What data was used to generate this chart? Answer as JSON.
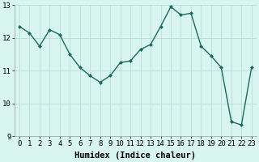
{
  "x": [
    0,
    1,
    2,
    3,
    4,
    5,
    6,
    7,
    8,
    9,
    10,
    11,
    12,
    13,
    14,
    15,
    16,
    17,
    18,
    19,
    20,
    21,
    22,
    23
  ],
  "y": [
    12.35,
    12.15,
    11.75,
    12.25,
    12.1,
    11.5,
    11.1,
    10.85,
    10.65,
    10.85,
    11.25,
    11.3,
    11.65,
    11.8,
    12.35,
    12.95,
    12.7,
    12.75,
    11.75,
    11.45,
    11.1,
    9.45,
    9.35,
    11.1
  ],
  "line_color": "#1a6b5a",
  "marker": "D",
  "markersize": 2.0,
  "linewidth": 1.0,
  "bg_color": "#d8f5f0",
  "grid_color": "#b8ddd8",
  "xlabel": "Humidex (Indice chaleur)",
  "ylim": [
    9,
    13
  ],
  "xlim": [
    -0.5,
    23.5
  ],
  "yticks": [
    9,
    10,
    11,
    12,
    13
  ],
  "xticks": [
    0,
    1,
    2,
    3,
    4,
    5,
    6,
    7,
    8,
    9,
    10,
    11,
    12,
    13,
    14,
    15,
    16,
    17,
    18,
    19,
    20,
    21,
    22,
    23
  ],
  "xlabel_fontsize": 7.5,
  "tick_fontsize": 6.5
}
